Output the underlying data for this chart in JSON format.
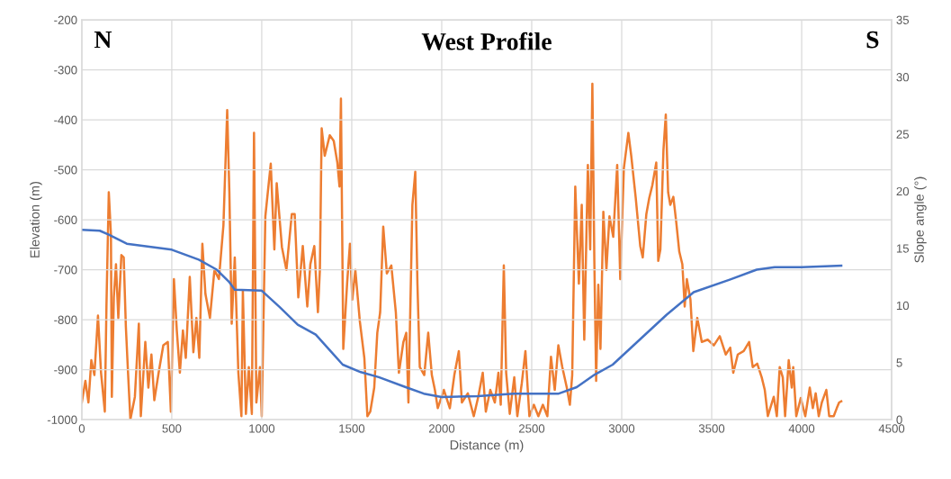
{
  "chart_data": {
    "type": "line",
    "title": "West Profile",
    "xlabel": "Distance (m)",
    "ylabel": "Elevation (m)",
    "y2label": "Slope angle (°)",
    "annotations": [
      "N",
      "S"
    ],
    "xlim": [
      0,
      4500
    ],
    "xticks": [
      0,
      500,
      1000,
      1500,
      2000,
      2500,
      3000,
      3500,
      4000,
      4500
    ],
    "ylim": [
      -1000,
      -200
    ],
    "yticks": [
      -1000,
      -900,
      -800,
      -700,
      -600,
      -500,
      -400,
      -300,
      -200
    ],
    "y2lim": [
      0,
      35
    ],
    "y2ticks": [
      0,
      5,
      10,
      15,
      20,
      25,
      30,
      35
    ],
    "grid": true,
    "legend": false,
    "marker": "none",
    "line_style": "solid",
    "series": [
      {
        "color": "#4472c4",
        "x": [
          0,
          100,
          150,
          250,
          500,
          650,
          750,
          820,
          850,
          1000,
          1100,
          1200,
          1300,
          1400,
          1450,
          1550,
          1650,
          1800,
          1900,
          2000,
          2200,
          2400,
          2650,
          2750,
          2850,
          2950,
          3100,
          3250,
          3400,
          3600,
          3750,
          3850,
          4000,
          4220
        ],
        "values": [
          -620,
          -622,
          -630,
          -648,
          -660,
          -680,
          -700,
          -725,
          -740,
          -742,
          -775,
          -810,
          -830,
          -870,
          -890,
          -905,
          -915,
          -935,
          -948,
          -955,
          -953,
          -948,
          -948,
          -935,
          -910,
          -890,
          -840,
          -790,
          -745,
          -720,
          -700,
          -695,
          -695,
          -692
        ]
      },
      {
        "color": "#ed7d31",
        "axis": "y2",
        "x": [
          0,
          20,
          37,
          53,
          70,
          90,
          107,
          128,
          137,
          150,
          162,
          167,
          178,
          190,
          203,
          220,
          233,
          245,
          257,
          270,
          295,
          317,
          328,
          353,
          370,
          387,
          403,
          428,
          453,
          478,
          495,
          512,
          528,
          545,
          562,
          578,
          600,
          620,
          637,
          653,
          670,
          687,
          712,
          737,
          762,
          787,
          808,
          820,
          833,
          850,
          870,
          887,
          895,
          912,
          928,
          945,
          957,
          970,
          990,
          1000,
          1020,
          1050,
          1070,
          1083,
          1112,
          1137,
          1167,
          1183,
          1203,
          1228,
          1253,
          1270,
          1292,
          1312,
          1323,
          1333,
          1350,
          1378,
          1400,
          1420,
          1432,
          1440,
          1453,
          1475,
          1490,
          1503,
          1520,
          1545,
          1570,
          1587,
          1603,
          1625,
          1642,
          1658,
          1675,
          1695,
          1720,
          1745,
          1762,
          1787,
          1803,
          1815,
          1837,
          1853,
          1865,
          1878,
          1903,
          1925,
          1945,
          1962,
          1978,
          2012,
          2045,
          2070,
          2095,
          2112,
          2145,
          2178,
          2203,
          2228,
          2245,
          2270,
          2295,
          2315,
          2328,
          2345,
          2358,
          2378,
          2403,
          2420,
          2445,
          2465,
          2487,
          2512,
          2537,
          2562,
          2587,
          2607,
          2628,
          2648,
          2670,
          2695,
          2712,
          2725,
          2742,
          2762,
          2778,
          2792,
          2812,
          2825,
          2837,
          2848,
          2858,
          2870,
          2882,
          2898,
          2915,
          2932,
          2953,
          2975,
          2992,
          3012,
          3037,
          3053,
          3078,
          3103,
          3117,
          3137,
          3153,
          3170,
          3192,
          3203,
          3215,
          3232,
          3245,
          3258,
          3270,
          3287,
          3303,
          3320,
          3337,
          3350,
          3362,
          3382,
          3398,
          3420,
          3445,
          3478,
          3512,
          3545,
          3578,
          3603,
          3620,
          3645,
          3678,
          3708,
          3728,
          3753,
          3778,
          3795,
          3812,
          3845,
          3862,
          3878,
          3895,
          3908,
          3928,
          3945,
          3953,
          3970,
          3995,
          4020,
          4045,
          4062,
          4078,
          4095,
          4112,
          4137,
          4153,
          4178,
          4195,
          4208,
          4220
        ],
        "values": [
          1.5,
          3.4,
          1.5,
          5.2,
          3.9,
          9.1,
          4.1,
          0.7,
          9.9,
          19.9,
          16.2,
          2.0,
          10.7,
          13.6,
          8.9,
          14.4,
          14.2,
          8.1,
          4.1,
          0,
          2.0,
          8.4,
          0.3,
          6.8,
          2.8,
          5.7,
          1.7,
          4.2,
          6.5,
          6.8,
          0.7,
          12.3,
          7.8,
          4.1,
          7.8,
          5.4,
          12.5,
          5.9,
          8.9,
          5.4,
          15.4,
          11.0,
          8.9,
          13.1,
          12.3,
          17.0,
          27.1,
          19.9,
          8.4,
          14.2,
          4.1,
          0.3,
          11.3,
          0.5,
          4.6,
          0.5,
          25.1,
          1.5,
          4.6,
          0.3,
          17.8,
          22.4,
          14.9,
          20.7,
          15.1,
          13.1,
          18.0,
          18.0,
          10.7,
          15.2,
          9.9,
          13.6,
          15.2,
          9.4,
          13.1,
          25.5,
          23.1,
          24.9,
          24.4,
          22.5,
          20.4,
          28.1,
          6.2,
          12.1,
          15.4,
          10.5,
          13.1,
          8.6,
          5.4,
          0.3,
          0.7,
          2.8,
          7.6,
          9.4,
          16.9,
          12.8,
          13.5,
          9.4,
          4.1,
          6.8,
          7.6,
          1.5,
          18.8,
          21.7,
          11.9,
          4.6,
          3.9,
          7.6,
          3.9,
          2.6,
          1.0,
          2.6,
          1.0,
          3.9,
          6.0,
          1.5,
          2.3,
          0.3,
          2.0,
          4.1,
          0.7,
          2.6,
          1.5,
          4.1,
          1.3,
          13.5,
          4.1,
          0.5,
          3.7,
          0.3,
          3.2,
          6.0,
          0.3,
          1.3,
          0.3,
          1.3,
          0.3,
          5.5,
          2.6,
          6.5,
          4.6,
          2.8,
          1.3,
          3.9,
          20.4,
          11.9,
          18.8,
          7.0,
          22.3,
          14.9,
          29.4,
          13.9,
          3.4,
          11.8,
          6.2,
          18.2,
          13.1,
          17.8,
          16.0,
          22.3,
          12.3,
          22.0,
          25.1,
          23.1,
          19.4,
          15.2,
          14.2,
          18.0,
          19.4,
          20.5,
          22.5,
          13.9,
          14.9,
          23.6,
          26.7,
          19.9,
          18.8,
          19.5,
          17.3,
          14.7,
          13.6,
          9.9,
          12.3,
          10.5,
          6.0,
          8.9,
          6.8,
          7.0,
          6.5,
          7.3,
          5.7,
          6.3,
          4.1,
          5.7,
          6.0,
          6.8,
          4.6,
          4.9,
          3.7,
          2.6,
          0.3,
          2.0,
          0.3,
          4.6,
          3.7,
          0.3,
          5.2,
          2.8,
          4.6,
          0.3,
          1.9,
          0.3,
          2.8,
          1.0,
          2.3,
          0.3,
          1.5,
          2.6,
          0.3,
          0.3,
          1.0,
          1.5,
          1.6
        ]
      }
    ]
  }
}
